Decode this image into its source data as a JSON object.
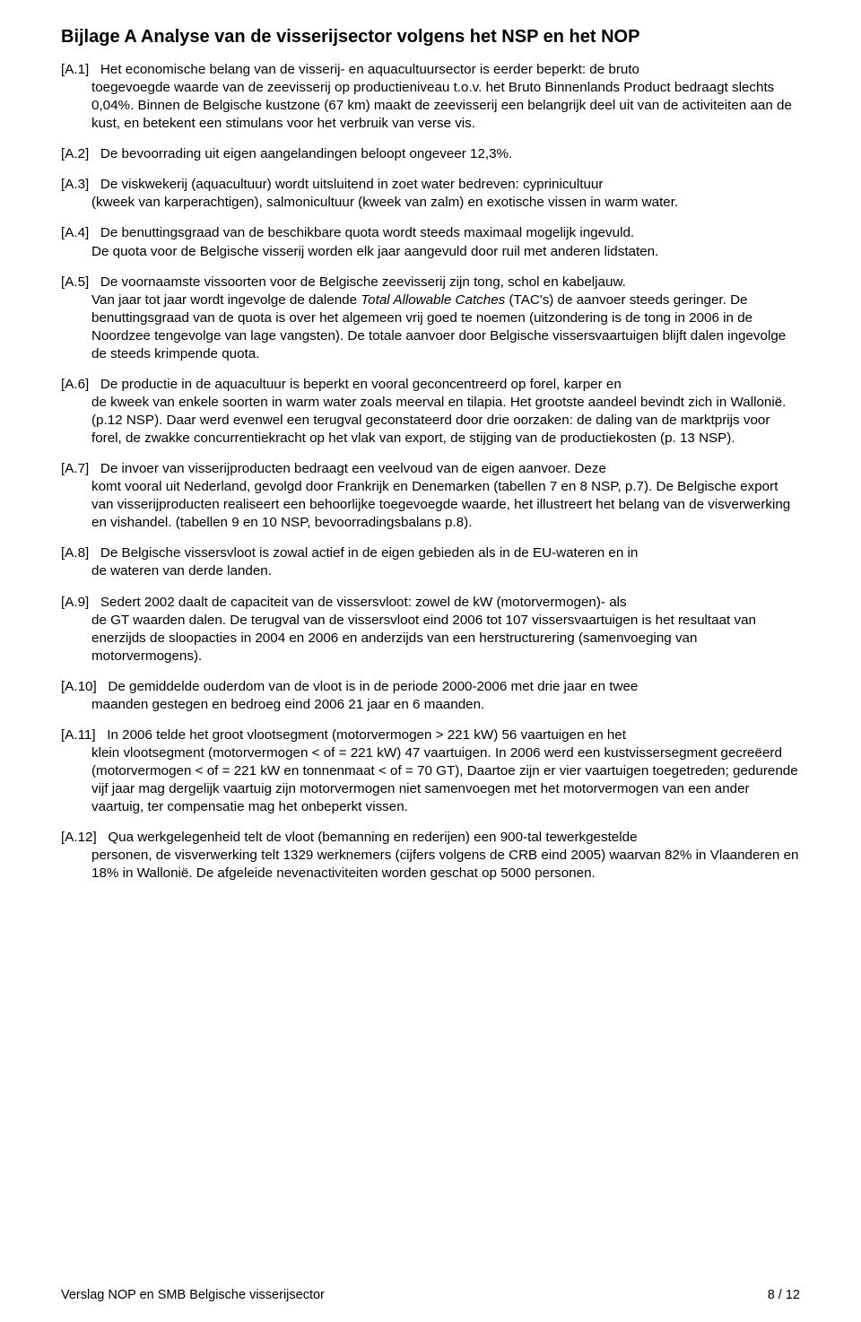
{
  "title": "Bijlage A Analyse van de visserijsector volgens het NSP en het NOP",
  "items": [
    {
      "label": "[A.1]",
      "first": "Het economische belang van de visserij- en aquacultuursector is eerder beperkt: de bruto",
      "rest": "toegevoegde waarde van de zeevisserij op productieniveau t.o.v. het Bruto Binnenlands Product bedraagt slechts 0,04%. Binnen de Belgische kustzone (67 km) maakt de zeevisserij een belangrijk deel uit van de activiteiten aan de kust, en betekent een stimulans voor het verbruik van verse vis."
    },
    {
      "label": "[A.2]",
      "first": "De bevoorrading uit eigen aangelandingen beloopt ongeveer 12,3%.",
      "rest": ""
    },
    {
      "label": "[A.3]",
      "first": "De viskwekerij (aquacultuur) wordt uitsluitend in zoet water bedreven: cyprinicultuur",
      "rest": "(kweek van karperachtigen), salmonicultuur (kweek van zalm) en exotische vissen in warm water."
    },
    {
      "label": "[A.4]",
      "first": "De benuttingsgraad van de beschikbare quota wordt steeds maximaal mogelijk ingevuld.",
      "rest": "De quota voor de Belgische visserij worden elk jaar aangevuld door ruil met anderen lidstaten."
    },
    {
      "label": "[A.5]",
      "first": "De voornaamste vissoorten voor de Belgische zeevisserij zijn tong, schol en kabeljauw.",
      "rest": "Van jaar tot jaar wordt ingevolge de dalende <span class=\"italic\">Total Allowable Catches</span> (TAC's) de aanvoer steeds geringer. De benuttingsgraad van de quota is over het algemeen vrij goed te noemen (uitzondering is de tong in 2006 in de Noordzee tengevolge van lage vangsten). De totale aanvoer door Belgische vissersvaartuigen blijft dalen ingevolge de steeds krimpende quota."
    },
    {
      "label": "[A.6]",
      "first": "De productie in de aquacultuur is beperkt en vooral geconcentreerd op forel, karper en",
      "rest": "de kweek van enkele soorten in warm water zoals meerval en tilapia. Het grootste aandeel bevindt zich in Wallonië. (p.12 NSP). Daar werd evenwel een terugval geconstateerd door drie oorzaken: de daling van de marktprijs voor forel, de zwakke concurrentiekracht op het vlak van export, de stijging van de productiekosten (p. 13 NSP)."
    },
    {
      "label": "[A.7]",
      "first": "De invoer van visserijproducten bedraagt een veelvoud van de eigen aanvoer. Deze",
      "rest": "komt vooral uit Nederland, gevolgd door Frankrijk en Denemarken (tabellen 7 en 8 NSP, p.7). De Belgische export van visserijproducten realiseert een behoorlijke toegevoegde waarde, het illustreert het belang van de visverwerking en vishandel. (tabellen 9 en 10 NSP, bevoorradingsbalans p.8)."
    },
    {
      "label": "[A.8]",
      "first": "De Belgische vissersvloot is zowal actief in de eigen gebieden als in de EU-wateren en in",
      "rest": "de wateren van derde landen."
    },
    {
      "label": "[A.9]",
      "first": "Sedert 2002 daalt de capaciteit van de vissersvloot: zowel de kW (motorvermogen)- als",
      "rest": "de GT waarden dalen. De terugval van de vissersvloot eind 2006 tot 107 vissersvaartuigen is het resultaat van enerzijds de sloopacties in 2004 en 2006 en anderzijds van een herstructurering (samenvoeging van motorvermogens)."
    },
    {
      "label": "[A.10]",
      "first": "De gemiddelde ouderdom van de vloot is in de periode 2000-2006 met drie jaar en twee",
      "rest": "maanden gestegen en bedroeg eind 2006 21 jaar en 6 maanden."
    },
    {
      "label": "[A.11]",
      "first": "In 2006 telde het groot vlootsegment (motorvermogen > 221 kW) 56 vaartuigen en het",
      "rest": "klein vlootsegment (motorvermogen < of = 221 kW) 47 vaartuigen. In 2006 werd een kustvissersegment gecreëerd (motorvermogen < of = 221 kW en tonnenmaat < of = 70 GT), Daartoe zijn er vier vaartuigen toegetreden; gedurende vijf jaar mag dergelijk vaartuig zijn motorvermogen niet samenvoegen met het motorvermogen van een ander vaartuig, ter compensatie mag het onbeperkt vissen."
    },
    {
      "label": "[A.12]",
      "first": "Qua werkgelegenheid telt de vloot (bemanning en rederijen) een 900-tal tewerkgestelde",
      "rest": "personen, de visverwerking telt 1329 werknemers (cijfers volgens de CRB eind 2005) waarvan 82% in Vlaanderen en 18% in Wallonië. De afgeleide nevenactiviteiten worden geschat op 5000 personen."
    }
  ],
  "footer": {
    "left": "Verslag NOP en SMB Belgische visserijsector",
    "right": "8 / 12"
  }
}
